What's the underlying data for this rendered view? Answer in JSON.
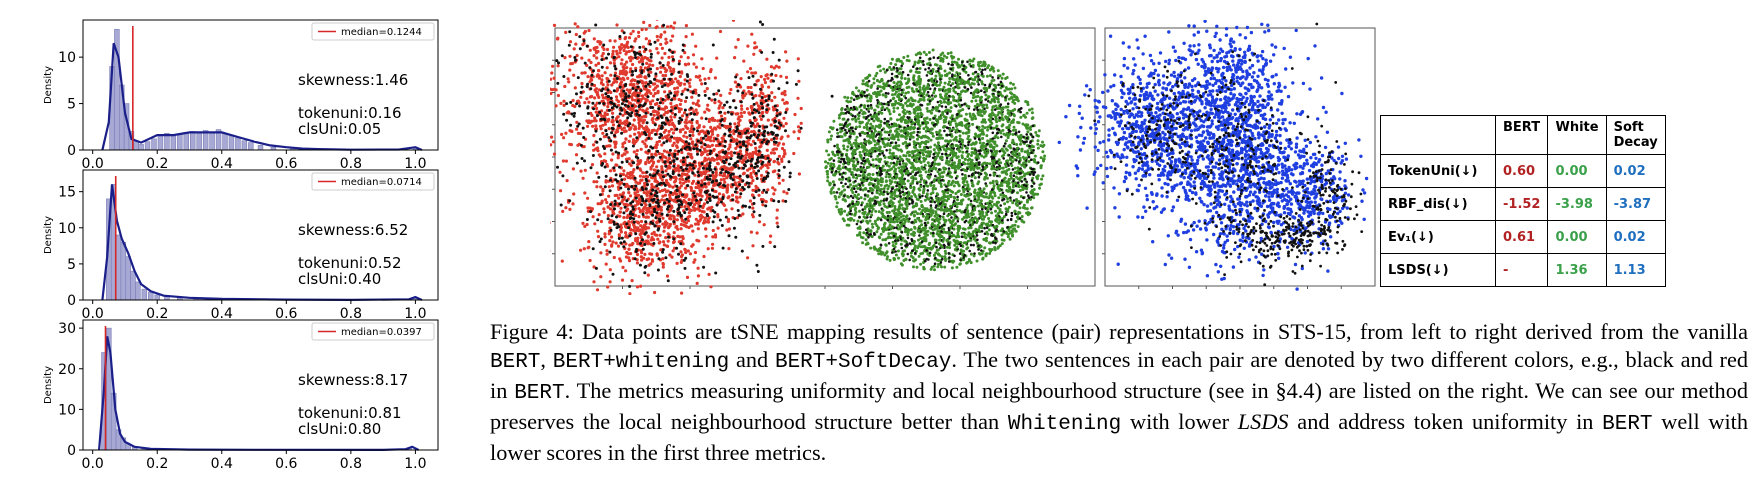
{
  "histograms": {
    "xtick_labels": [
      "0.0",
      "0.2",
      "0.4",
      "0.6",
      "0.8",
      "1.0"
    ],
    "ylabel": "Density",
    "panels": [
      {
        "legend": "median=0.1244",
        "median": 0.1244,
        "ytick_labels": [
          "0",
          "5",
          "10"
        ],
        "ylim": [
          0,
          14
        ],
        "skewness": "skewness:1.46",
        "tokenuni": "tokenuni:0.16",
        "clsuni": "clsUni:0.05",
        "bars": [
          [
            0.06,
            9
          ],
          [
            0.075,
            13
          ],
          [
            0.09,
            7
          ],
          [
            0.105,
            5
          ],
          [
            0.12,
            2
          ],
          [
            0.135,
            1
          ],
          [
            0.15,
            0.6
          ],
          [
            0.17,
            0.9
          ],
          [
            0.19,
            1.2
          ],
          [
            0.21,
            1.6
          ],
          [
            0.23,
            1.8
          ],
          [
            0.25,
            1.5
          ],
          [
            0.27,
            1.7
          ],
          [
            0.29,
            1.9
          ],
          [
            0.31,
            2.0
          ],
          [
            0.33,
            1.8
          ],
          [
            0.35,
            2.1
          ],
          [
            0.37,
            1.9
          ],
          [
            0.39,
            2.2
          ],
          [
            0.41,
            1.8
          ],
          [
            0.43,
            1.6
          ],
          [
            0.45,
            1.3
          ],
          [
            0.47,
            1.0
          ],
          [
            0.49,
            0.8
          ],
          [
            0.52,
            0.5
          ],
          [
            0.56,
            0.3
          ],
          [
            0.62,
            0.2
          ],
          [
            0.7,
            0.05
          ],
          [
            1.0,
            0.3
          ]
        ],
        "kde": [
          [
            0.03,
            0
          ],
          [
            0.05,
            3
          ],
          [
            0.065,
            11.5
          ],
          [
            0.08,
            10
          ],
          [
            0.1,
            4
          ],
          [
            0.12,
            1.2
          ],
          [
            0.15,
            0.8
          ],
          [
            0.2,
            1.6
          ],
          [
            0.25,
            1.6
          ],
          [
            0.3,
            1.9
          ],
          [
            0.35,
            1.9
          ],
          [
            0.4,
            1.9
          ],
          [
            0.45,
            1.4
          ],
          [
            0.5,
            0.9
          ],
          [
            0.55,
            0.5
          ],
          [
            0.6,
            0.3
          ],
          [
            0.65,
            0.15
          ],
          [
            0.7,
            0.1
          ],
          [
            0.8,
            0.03
          ],
          [
            0.95,
            0.05
          ],
          [
            1.0,
            0.3
          ],
          [
            1.02,
            0
          ]
        ]
      },
      {
        "legend": "median=0.0714",
        "median": 0.0714,
        "ytick_labels": [
          "0",
          "5",
          "10",
          "15"
        ],
        "ylim": [
          0,
          18
        ],
        "skewness": "skewness:6.52",
        "tokenuni": "tokenuni:0.52",
        "clsuni": "clsUni:0.40",
        "bars": [
          [
            0.05,
            14
          ],
          [
            0.065,
            16
          ],
          [
            0.08,
            9
          ],
          [
            0.095,
            8
          ],
          [
            0.11,
            6
          ],
          [
            0.125,
            4
          ],
          [
            0.14,
            2.5
          ],
          [
            0.16,
            1.5
          ],
          [
            0.18,
            1.1
          ],
          [
            0.2,
            0.7
          ],
          [
            0.23,
            0.5
          ],
          [
            0.27,
            0.3
          ],
          [
            0.32,
            0.2
          ],
          [
            0.4,
            0.1
          ],
          [
            0.55,
            0.05
          ],
          [
            1.0,
            0.3
          ]
        ],
        "kde": [
          [
            0.03,
            0
          ],
          [
            0.045,
            6
          ],
          [
            0.06,
            16
          ],
          [
            0.075,
            11
          ],
          [
            0.09,
            8.5
          ],
          [
            0.11,
            6.5
          ],
          [
            0.13,
            4
          ],
          [
            0.15,
            2.2
          ],
          [
            0.18,
            1.2
          ],
          [
            0.22,
            0.6
          ],
          [
            0.3,
            0.3
          ],
          [
            0.4,
            0.15
          ],
          [
            0.6,
            0.05
          ],
          [
            0.8,
            0.02
          ],
          [
            0.98,
            0.1
          ],
          [
            1.0,
            0.4
          ],
          [
            1.02,
            0
          ]
        ]
      },
      {
        "legend": "median=0.0397",
        "median": 0.0397,
        "ytick_labels": [
          "0",
          "10",
          "20",
          "30"
        ],
        "ylim": [
          0,
          32
        ],
        "skewness": "skewness:8.17",
        "tokenuni": "tokenuni:0.81",
        "clsuni": "clsUni:0.80",
        "bars": [
          [
            0.035,
            24
          ],
          [
            0.05,
            30
          ],
          [
            0.065,
            14
          ],
          [
            0.08,
            5
          ],
          [
            0.095,
            3
          ],
          [
            0.11,
            1.5
          ],
          [
            0.13,
            0.8
          ],
          [
            0.16,
            0.5
          ],
          [
            0.2,
            0.2
          ],
          [
            0.3,
            0.1
          ],
          [
            0.98,
            0.5
          ]
        ],
        "kde": [
          [
            0.02,
            0
          ],
          [
            0.035,
            15
          ],
          [
            0.045,
            28
          ],
          [
            0.055,
            24
          ],
          [
            0.07,
            10
          ],
          [
            0.085,
            4
          ],
          [
            0.1,
            2
          ],
          [
            0.13,
            0.8
          ],
          [
            0.18,
            0.3
          ],
          [
            0.3,
            0.1
          ],
          [
            0.5,
            0.05
          ],
          [
            0.9,
            0.02
          ],
          [
            0.97,
            0.2
          ],
          [
            0.99,
            0.8
          ],
          [
            1.01,
            0
          ]
        ]
      }
    ]
  },
  "metrics_table": {
    "headers": [
      "",
      "BERT",
      "White",
      "Soft Decay"
    ],
    "rows": [
      {
        "label": "TokenUni(↓)",
        "bert": "0.60",
        "white": "0.00",
        "soft": "0.02"
      },
      {
        "label": "RBF_dis(↓)",
        "bert": "-1.52",
        "white": "-3.98",
        "soft": "-3.87"
      },
      {
        "label": "Ev₁(↓)",
        "bert": "0.61",
        "white": "0.00",
        "soft": "0.02"
      },
      {
        "label": "LSDS(↓)",
        "bert": "-",
        "white": "1.36",
        "soft": "1.13"
      }
    ],
    "colors": {
      "bert": "#b22222",
      "white": "#3aa04a",
      "soft": "#1f6fbf"
    }
  },
  "tsne_colors": {
    "red": "#e03a2e",
    "black": "#111111",
    "green": "#3f8f2a",
    "blue": "#1f3fe0"
  },
  "caption": {
    "label": "Figure 4:",
    "t1": " Data points are tSNE mapping results of sentence (pair) representations in STS-15, from left to right derived from the vanilla ",
    "m1": "BERT",
    "t2": ", ",
    "m2": "BERT+whitening",
    "t3": " and ",
    "m3": "BERT+SoftDecay",
    "t4": ". The two sentences in each pair are denoted by two different colors, e.g., black and red in ",
    "m4": "BERT",
    "t5": ". The metrics measuring uniformity and local neighbourhood structure (see in §4.4) are listed on the right. We can see our method preserves the local neighbourhood structure better than ",
    "m5": "Whitening",
    "t6": " with lower ",
    "i1": "LSDS",
    "t7": " and address token uniformity in ",
    "m6": "BERT",
    "t8": " well with lower scores in the first three metrics."
  }
}
